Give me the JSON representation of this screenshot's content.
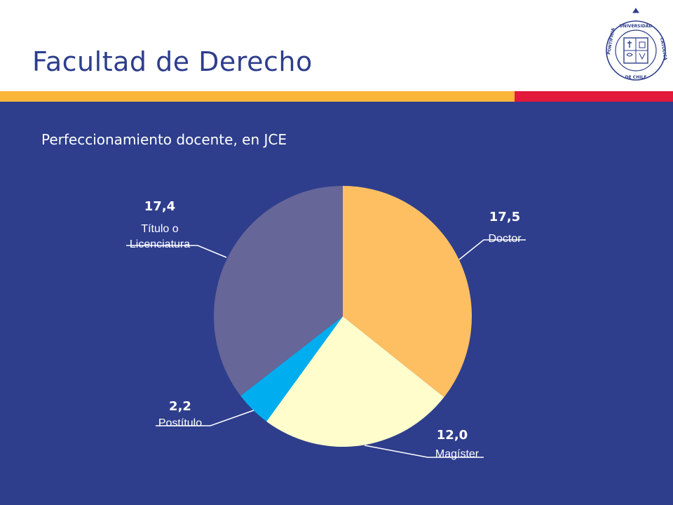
{
  "page": {
    "title": "Facultad de Derecho",
    "subtitle": "Perfeccionamiento docente, en JCE",
    "colors": {
      "title": "#2E3E8C",
      "panel": "#2E3E8C",
      "stripe_yellow": "#FBB63A",
      "stripe_red": "#E3193B"
    }
  },
  "logo": {
    "icon": "university-seal-icon",
    "ring_text": "PONTIFICIA UNIVERSIDAD CATOLICA DE CHILE"
  },
  "chart_data": {
    "type": "pie",
    "title": "Perfeccionamiento docente, en JCE",
    "start": "12 o'clock, clockwise",
    "slices": [
      {
        "name": "Doctor",
        "value": 17.5,
        "value_label": "17,5",
        "color": "#FDBF62"
      },
      {
        "name": "Magíster",
        "value": 12.0,
        "value_label": "12,0",
        "color": "#FEFDCB"
      },
      {
        "name": "Postítulo",
        "value": 2.2,
        "value_label": "2,2",
        "color": "#00AEEF"
      },
      {
        "name": "Título o Licenciatura",
        "value": 17.4,
        "value_label": "17,4",
        "label_lines": [
          "Título o",
          "Licenciatura"
        ],
        "color": "#666699"
      }
    ]
  }
}
